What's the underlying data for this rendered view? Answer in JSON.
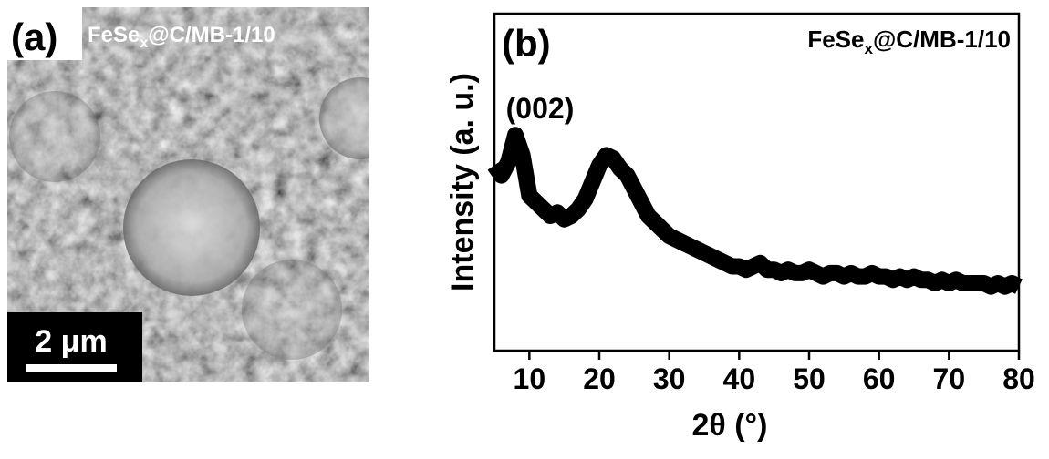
{
  "image_panel": {
    "label": "(a)",
    "title": [
      "FeSe",
      "x",
      "@C/MB-1/10"
    ],
    "scale_bar": "2 μm"
  },
  "chart_data": {
    "type": "line",
    "label": "(b)",
    "title": [
      "FeSe",
      "x",
      "@C/MB-1/10"
    ],
    "annotation": "(002)",
    "x_label": "2θ (°)",
    "y_label": "Intensity (a. u.)",
    "xlim": [
      5,
      80
    ],
    "xticks": [
      10,
      20,
      30,
      40,
      50,
      60,
      70,
      80
    ],
    "ylim": [
      0,
      100
    ],
    "color": "#000000",
    "x": [
      5,
      6,
      7,
      8,
      9,
      10,
      11,
      12,
      13,
      14,
      15,
      16,
      17,
      18,
      19,
      20,
      21,
      22,
      23,
      24,
      25,
      26,
      27,
      28,
      29,
      30,
      31,
      32,
      33,
      34,
      35,
      36,
      37,
      38,
      39,
      40,
      41,
      42,
      43,
      44,
      45,
      46,
      47,
      48,
      49,
      50,
      51,
      52,
      53,
      54,
      55,
      56,
      57,
      58,
      59,
      60,
      61,
      62,
      63,
      64,
      65,
      66,
      67,
      68,
      69,
      70,
      71,
      72,
      73,
      74,
      75,
      76,
      77,
      78,
      79,
      80
    ],
    "values": [
      55,
      52,
      56,
      64,
      58,
      46,
      44,
      42,
      40,
      41,
      39,
      40,
      42,
      45,
      50,
      55,
      58,
      57,
      54,
      52,
      48,
      44,
      40,
      38,
      36,
      34,
      33,
      32,
      31,
      30,
      29,
      28,
      27,
      26,
      25,
      25,
      24,
      25,
      26,
      24,
      24,
      23,
      24,
      23,
      23,
      24,
      23,
      22,
      23,
      23,
      22,
      23,
      22,
      22,
      23,
      22,
      22,
      21,
      22,
      21,
      22,
      21,
      21,
      20,
      21,
      20,
      21,
      20,
      20,
      20,
      20,
      19,
      20,
      19,
      20,
      19
    ]
  }
}
